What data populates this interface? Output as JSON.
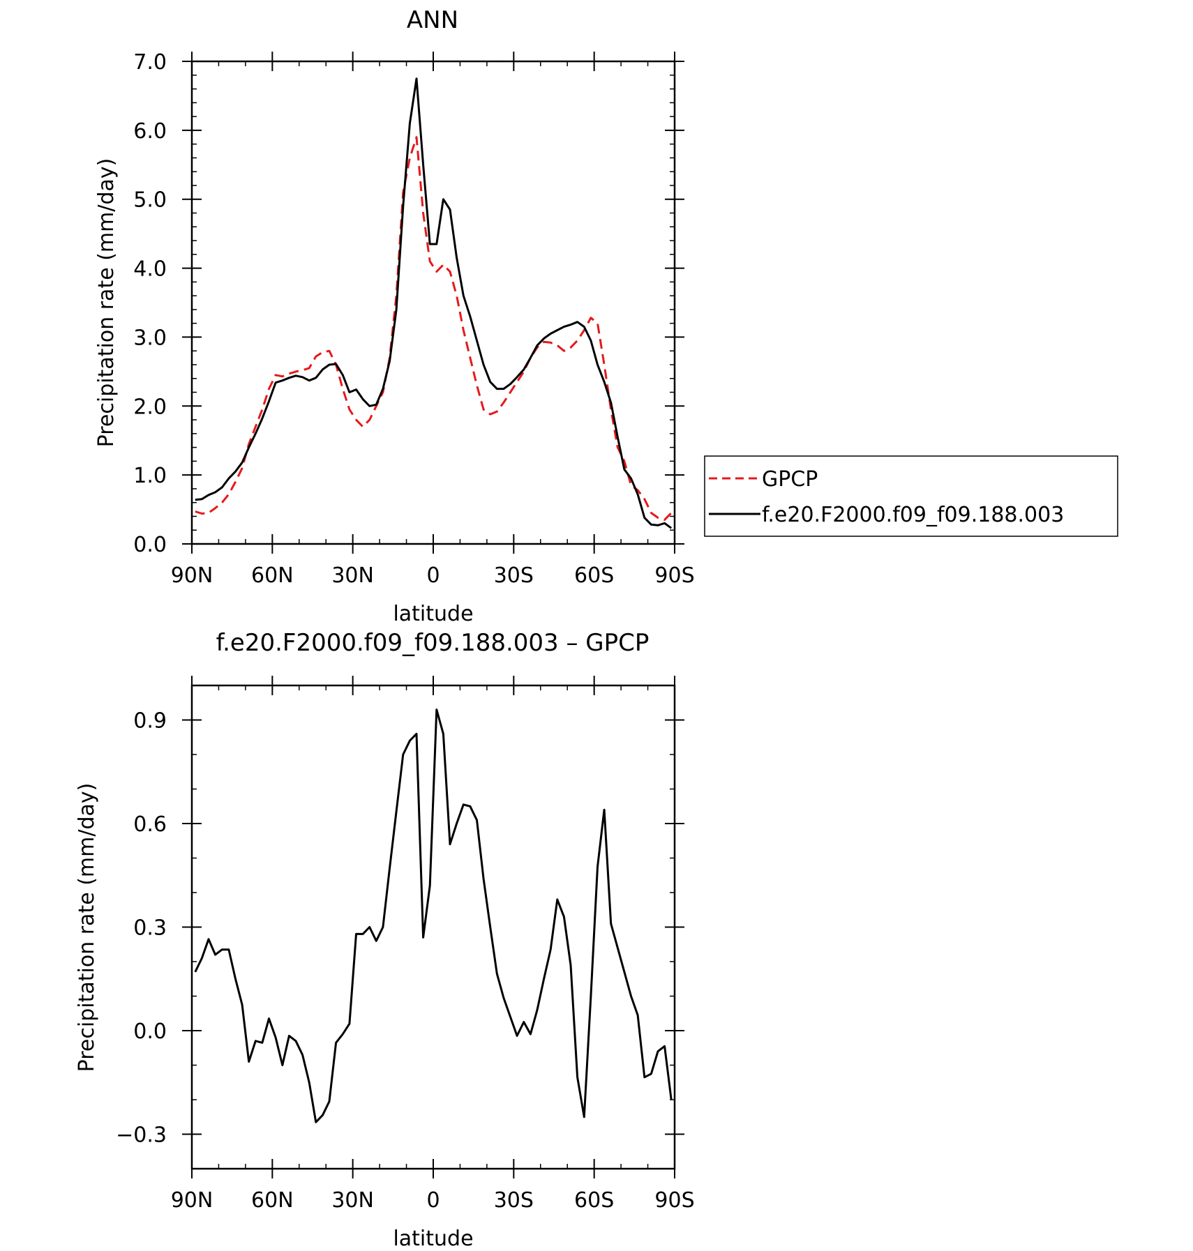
{
  "colors": {
    "gpcp": "#e41a1c",
    "model": "#000000",
    "axis": "#000000"
  },
  "chart_data": [
    {
      "type": "line",
      "title": "ANN",
      "xlabel": "latitude",
      "ylabel": "Precipitation rate (mm/day)",
      "xlim": [
        90,
        -90
      ],
      "ylim": [
        0,
        7
      ],
      "x_ticks": [
        {
          "value": 90,
          "label": "90N"
        },
        {
          "value": 60,
          "label": "60N"
        },
        {
          "value": 30,
          "label": "30N"
        },
        {
          "value": 0,
          "label": "0"
        },
        {
          "value": -30,
          "label": "30S"
        },
        {
          "value": -60,
          "label": "60S"
        },
        {
          "value": -90,
          "label": "90S"
        }
      ],
      "y_ticks": [
        {
          "value": 0,
          "label": "0.0"
        },
        {
          "value": 1,
          "label": "1.0"
        },
        {
          "value": 2,
          "label": "2.0"
        },
        {
          "value": 3,
          "label": "3.0"
        },
        {
          "value": 4,
          "label": "4.0"
        },
        {
          "value": 5,
          "label": "5.0"
        },
        {
          "value": 6,
          "label": "6.0"
        },
        {
          "value": 7,
          "label": "7.0"
        }
      ],
      "x_minor_step": 10,
      "y_minor_step": 0.2,
      "legend_position": "right",
      "series": [
        {
          "name": "GPCP",
          "style": "dashed",
          "color": "#e41a1c",
          "x": [
            88.75,
            86.25,
            83.75,
            81.25,
            78.75,
            76.25,
            73.75,
            71.25,
            68.75,
            66.25,
            63.75,
            61.25,
            58.75,
            56.25,
            53.75,
            51.25,
            48.75,
            46.25,
            43.75,
            41.25,
            38.75,
            36.25,
            33.75,
            31.25,
            28.75,
            26.25,
            23.75,
            21.25,
            18.75,
            16.25,
            13.75,
            11.25,
            8.75,
            6.25,
            3.75,
            1.25,
            -1.25,
            -3.75,
            -6.25,
            -8.75,
            -11.25,
            -13.75,
            -16.25,
            -18.75,
            -21.25,
            -23.75,
            -26.25,
            -28.75,
            -31.25,
            -33.75,
            -36.25,
            -38.75,
            -41.25,
            -43.75,
            -46.25,
            -48.75,
            -51.25,
            -53.75,
            -56.25,
            -58.75,
            -61.25,
            -63.75,
            -66.25,
            -68.75,
            -71.25,
            -73.75,
            -76.25,
            -78.75,
            -81.25,
            -83.75,
            -86.25,
            -88.75
          ],
          "y": [
            0.47,
            0.44,
            0.45,
            0.52,
            0.6,
            0.72,
            0.9,
            1.1,
            1.45,
            1.7,
            1.95,
            2.25,
            2.45,
            2.43,
            2.47,
            2.5,
            2.52,
            2.55,
            2.72,
            2.78,
            2.8,
            2.6,
            2.25,
            1.95,
            1.8,
            1.7,
            1.8,
            2.0,
            2.2,
            2.7,
            3.6,
            5.1,
            5.6,
            5.9,
            4.8,
            4.1,
            3.95,
            4.05,
            3.95,
            3.6,
            3.1,
            2.7,
            2.3,
            1.95,
            1.88,
            1.92,
            2.05,
            2.2,
            2.35,
            2.5,
            2.7,
            2.85,
            2.93,
            2.92,
            2.88,
            2.8,
            2.85,
            2.95,
            3.1,
            3.28,
            3.2,
            2.6,
            1.95,
            1.4,
            1.2,
            0.85,
            0.78,
            0.65,
            0.45,
            0.38,
            0.35,
            0.45
          ]
        },
        {
          "name": "f.e20.F2000.f09_f09.188.003",
          "style": "solid",
          "color": "#000000",
          "x": [
            88.75,
            86.25,
            83.75,
            81.25,
            78.75,
            76.25,
            73.75,
            71.25,
            68.75,
            66.25,
            63.75,
            61.25,
            58.75,
            56.25,
            53.75,
            51.25,
            48.75,
            46.25,
            43.75,
            41.25,
            38.75,
            36.25,
            33.75,
            31.25,
            28.75,
            26.25,
            23.75,
            21.25,
            18.75,
            16.25,
            13.75,
            11.25,
            8.75,
            6.25,
            3.75,
            1.25,
            -1.25,
            -3.75,
            -6.25,
            -8.75,
            -11.25,
            -13.75,
            -16.25,
            -18.75,
            -21.25,
            -23.75,
            -26.25,
            -28.75,
            -31.25,
            -33.75,
            -36.25,
            -38.75,
            -41.25,
            -43.75,
            -46.25,
            -48.75,
            -51.25,
            -53.75,
            -56.25,
            -58.75,
            -61.25,
            -63.75,
            -66.25,
            -68.75,
            -71.25,
            -73.75,
            -76.25,
            -78.75,
            -81.25,
            -83.75,
            -86.25,
            -88.75
          ],
          "y": [
            0.64,
            0.65,
            0.71,
            0.75,
            0.82,
            0.95,
            1.05,
            1.18,
            1.4,
            1.6,
            1.82,
            2.07,
            2.34,
            2.37,
            2.41,
            2.44,
            2.42,
            2.37,
            2.41,
            2.53,
            2.6,
            2.61,
            2.45,
            2.2,
            2.24,
            2.1,
            2.0,
            2.02,
            2.25,
            2.65,
            3.4,
            4.9,
            6.1,
            6.75,
            5.5,
            4.35,
            4.35,
            5.0,
            4.85,
            4.15,
            3.6,
            3.3,
            2.95,
            2.6,
            2.35,
            2.25,
            2.25,
            2.32,
            2.42,
            2.53,
            2.7,
            2.88,
            2.98,
            3.05,
            3.1,
            3.15,
            3.18,
            3.22,
            3.15,
            2.95,
            2.6,
            2.35,
            2.05,
            1.55,
            1.08,
            0.95,
            0.72,
            0.38,
            0.28,
            0.27,
            0.3,
            0.23
          ]
        }
      ]
    },
    {
      "type": "line",
      "title": "f.e20.F2000.f09_f09.188.003 – GPCP",
      "xlabel": "latitude",
      "ylabel": "Precipitation rate (mm/day)",
      "xlim": [
        90,
        -90
      ],
      "ylim": [
        -0.4,
        1.0
      ],
      "x_ticks": [
        {
          "value": 90,
          "label": "90N"
        },
        {
          "value": 60,
          "label": "60N"
        },
        {
          "value": 30,
          "label": "30N"
        },
        {
          "value": 0,
          "label": "0"
        },
        {
          "value": -30,
          "label": "30S"
        },
        {
          "value": -60,
          "label": "60S"
        },
        {
          "value": -90,
          "label": "90S"
        }
      ],
      "y_ticks": [
        {
          "value": -0.3,
          "label": "−0.3"
        },
        {
          "value": 0.0,
          "label": "0.0"
        },
        {
          "value": 0.3,
          "label": "0.3"
        },
        {
          "value": 0.6,
          "label": "0.6"
        },
        {
          "value": 0.9,
          "label": "0.9"
        }
      ],
      "x_minor_step": 10,
      "y_minor_step": 0.1,
      "series": [
        {
          "style": "solid",
          "color": "#000000",
          "x": [
            88.75,
            86.25,
            83.75,
            81.25,
            78.75,
            76.25,
            73.75,
            71.25,
            68.75,
            66.25,
            63.75,
            61.25,
            58.75,
            56.25,
            53.75,
            51.25,
            48.75,
            46.25,
            43.75,
            41.25,
            38.75,
            36.25,
            33.75,
            31.25,
            28.75,
            26.25,
            23.75,
            21.25,
            18.75,
            16.25,
            13.75,
            11.25,
            8.75,
            6.25,
            3.75,
            1.25,
            -1.25,
            -3.75,
            -6.25,
            -8.75,
            -11.25,
            -13.75,
            -16.25,
            -18.75,
            -21.25,
            -23.75,
            -26.25,
            -28.75,
            -31.25,
            -33.75,
            -36.25,
            -38.75,
            -41.25,
            -43.75,
            -46.25,
            -48.75,
            -51.25,
            -53.75,
            -56.25,
            -58.75,
            -61.25,
            -63.75,
            -66.25,
            -68.75,
            -71.25,
            -73.75,
            -76.25,
            -78.75,
            -81.25,
            -83.75,
            -86.25,
            -88.75
          ],
          "y": [
            0.17,
            0.21,
            0.265,
            0.22,
            0.235,
            0.235,
            0.15,
            0.075,
            -0.09,
            -0.03,
            -0.035,
            0.035,
            -0.02,
            -0.1,
            -0.015,
            -0.03,
            -0.07,
            -0.15,
            -0.265,
            -0.245,
            -0.205,
            -0.035,
            -0.01,
            0.02,
            0.28,
            0.28,
            0.3,
            0.26,
            0.3,
            0.47,
            0.635,
            0.8,
            0.84,
            0.86,
            0.27,
            0.42,
            0.93,
            0.86,
            0.54,
            0.6,
            0.655,
            0.65,
            0.61,
            0.44,
            0.3,
            0.165,
            0.095,
            0.04,
            -0.015,
            0.025,
            -0.01,
            0.06,
            0.15,
            0.235,
            0.38,
            0.33,
            0.19,
            -0.135,
            -0.25,
            0.1,
            0.475,
            0.64,
            0.31,
            0.24,
            0.17,
            0.1,
            0.045,
            -0.135,
            -0.125,
            -0.06,
            -0.045,
            -0.2
          ]
        }
      ]
    }
  ]
}
